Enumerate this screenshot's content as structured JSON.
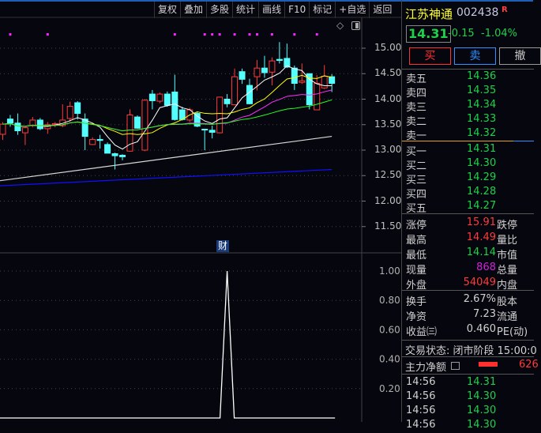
{
  "toolbar": {
    "items": [
      "复权",
      "叠加",
      "多股",
      "统计",
      "画线",
      "F10",
      "标记",
      "+自选",
      "返回"
    ]
  },
  "chart": {
    "price_axis": [
      "15.00",
      "14.50",
      "14.00",
      "13.50",
      "13.00",
      "12.50",
      "12.00",
      "11.50"
    ],
    "price_ticks": [
      15.0,
      14.5,
      14.0,
      13.5,
      13.0,
      12.5,
      12.0,
      11.5
    ],
    "up_color": "#ff3b3b",
    "down_color": "#54ffff",
    "candles": [
      [
        13.31,
        13.51,
        13.55,
        13.2
      ],
      [
        13.61,
        13.53,
        13.69,
        13.46
      ],
      [
        13.53,
        13.38,
        13.72,
        13.3
      ],
      [
        13.34,
        13.44,
        13.48,
        13.1
      ],
      [
        13.48,
        13.59,
        13.65,
        13.45
      ],
      [
        13.59,
        13.42,
        13.63,
        13.39
      ],
      [
        13.42,
        13.5,
        13.55,
        13.32
      ],
      [
        13.5,
        13.52,
        13.55,
        13.45
      ],
      [
        13.48,
        13.59,
        13.9,
        13.45
      ],
      [
        13.62,
        13.86,
        13.95,
        13.55
      ],
      [
        13.93,
        13.72,
        13.96,
        13.6
      ],
      [
        13.61,
        13.27,
        13.72,
        13.0
      ],
      [
        13.11,
        13.21,
        13.25,
        13.1
      ],
      [
        13.21,
        13.19,
        13.3,
        13.03
      ],
      [
        13.11,
        12.94,
        13.15,
        12.94
      ],
      [
        12.93,
        12.89,
        12.95,
        12.62
      ],
      [
        12.9,
        12.87,
        12.92,
        12.8
      ],
      [
        12.98,
        13.69,
        13.8,
        12.97
      ],
      [
        13.65,
        13.43,
        13.68,
        13.42
      ],
      [
        13.0,
        13.98,
        14.0,
        12.98
      ],
      [
        14.1,
        13.97,
        14.18,
        13.8
      ],
      [
        13.96,
        14.1,
        14.13,
        13.92
      ],
      [
        14.1,
        13.88,
        14.15,
        13.85
      ],
      [
        14.14,
        13.6,
        14.48,
        13.58
      ],
      [
        13.79,
        13.6,
        13.85,
        13.58
      ],
      [
        13.59,
        13.79,
        13.83,
        13.55
      ],
      [
        13.72,
        13.47,
        13.75,
        13.45
      ],
      [
        13.41,
        13.4,
        13.41,
        13.0
      ],
      [
        13.39,
        13.35,
        13.48,
        13.23
      ],
      [
        13.34,
        14.04,
        14.05,
        13.33
      ],
      [
        14.0,
        13.91,
        14.1,
        13.84
      ],
      [
        13.89,
        14.44,
        14.6,
        13.88
      ],
      [
        14.54,
        14.39,
        14.6,
        14.3
      ],
      [
        14.27,
        13.91,
        14.4,
        13.9
      ],
      [
        14.44,
        14.61,
        14.77,
        14.17
      ],
      [
        14.61,
        14.52,
        14.85,
        14.42
      ],
      [
        14.53,
        14.75,
        14.82,
        14.27
      ],
      [
        14.78,
        14.76,
        15.12,
        14.7
      ],
      [
        14.8,
        14.63,
        15.09,
        14.61
      ],
      [
        14.61,
        14.31,
        14.66,
        14.18
      ],
      [
        14.33,
        14.36,
        14.7,
        14.3
      ],
      [
        14.5,
        13.89,
        14.5,
        13.8
      ],
      [
        13.79,
        14.31,
        14.47,
        13.79
      ],
      [
        14.22,
        14.45,
        14.67,
        14.2
      ],
      [
        14.44,
        14.31,
        14.49,
        14.14
      ]
    ],
    "ma_colors": {
      "ma5": "#ffffff",
      "ma10": "#ffff00",
      "ma20": "#ff30ff",
      "ma30": "#20ff20"
    },
    "long_ma": [
      {
        "color": "#d8d8d8",
        "from": 12.4,
        "to": 13.27
      },
      {
        "color": "#1010ff",
        "from": 12.3,
        "to": 12.62
      }
    ],
    "signal_dots": [
      1,
      6,
      23,
      27,
      28,
      29,
      31,
      33,
      34,
      36,
      39,
      42
    ],
    "signal_color": "#ff20ff",
    "indicator_label": "财",
    "indicator_axis": [
      "1.00",
      "0.80",
      "0.60",
      "0.40",
      "0.20"
    ],
    "indicator_values_peak_index": 30,
    "indicator_peak": 1.0
  },
  "quote": {
    "name": "江苏神通",
    "code": "002438",
    "badge": "R",
    "price": "14.31",
    "change": "-0.15",
    "pct": "-1.04%",
    "buy": "买",
    "sell": "卖",
    "cancel": "撤",
    "asks": [
      {
        "l": "卖五",
        "p": "14.36"
      },
      {
        "l": "卖四",
        "p": "14.35"
      },
      {
        "l": "卖三",
        "p": "14.34"
      },
      {
        "l": "卖二",
        "p": "14.33"
      },
      {
        "l": "卖一",
        "p": "14.32"
      }
    ],
    "bids": [
      {
        "l": "买一",
        "p": "14.31"
      },
      {
        "l": "买二",
        "p": "14.30"
      },
      {
        "l": "买三",
        "p": "14.29"
      },
      {
        "l": "买四",
        "p": "14.28"
      },
      {
        "l": "买五",
        "p": "14.27"
      }
    ],
    "stats": [
      {
        "l": "涨停",
        "v": "15.91",
        "c": "red",
        "l2": "跌停"
      },
      {
        "l": "最高",
        "v": "14.49",
        "c": "red",
        "l2": "量比"
      },
      {
        "l": "最低",
        "v": "14.14",
        "c": "green",
        "l2": "市值"
      },
      {
        "l": "现量",
        "v": "868",
        "c": "purple",
        "l2": "总量"
      },
      {
        "l": "外盘",
        "v": "54049",
        "c": "red",
        "l2": "内盘"
      }
    ],
    "stats2": [
      {
        "l": "换手",
        "v": "2.67%",
        "l2": "股本"
      },
      {
        "l": "净资",
        "v": "7.23",
        "l2": "流通"
      },
      {
        "l": "收益㈢",
        "v": "0.460",
        "l2": "PE(动)"
      }
    ],
    "status": "交易状态: 闭市阶段 15:00:0",
    "main_net_label": "主力净额",
    "main_net_value": "626",
    "ticks": [
      {
        "t": "14:56",
        "p": "14.31"
      },
      {
        "t": "14:56",
        "p": "14.30"
      },
      {
        "t": "14:56",
        "p": "14.30"
      },
      {
        "t": "14:56",
        "p": "14.30"
      }
    ]
  }
}
